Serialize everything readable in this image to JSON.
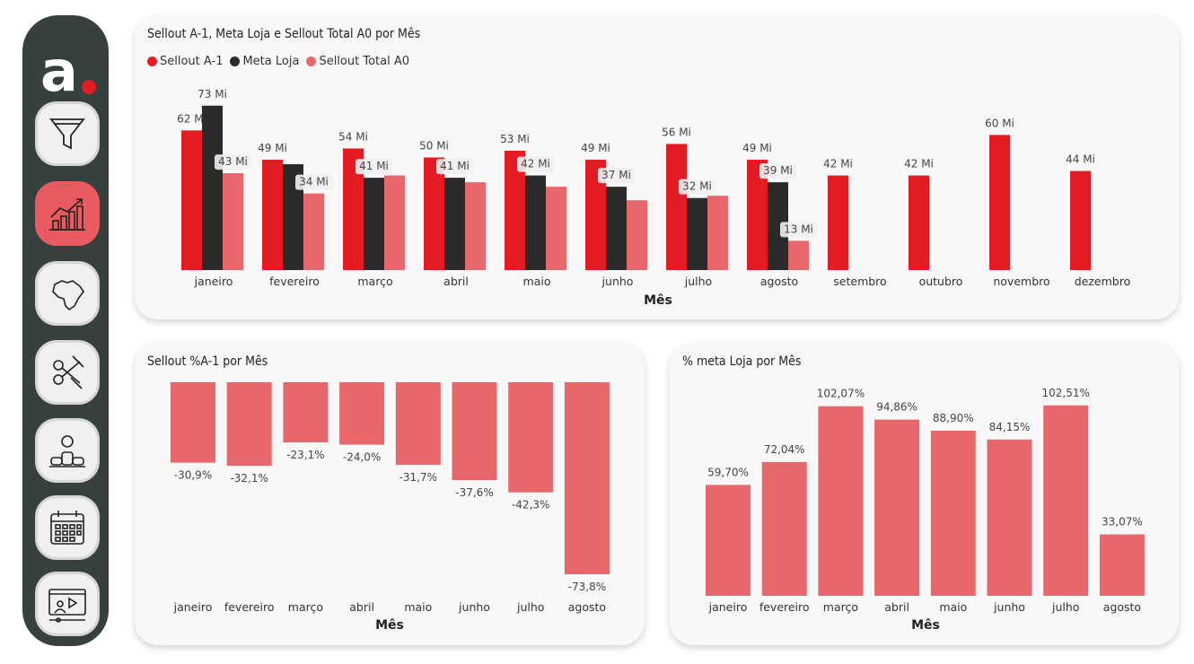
{
  "brand": {
    "logo_letter": "a",
    "dot_color": "#e31c23"
  },
  "sidebar": {
    "items": [
      {
        "name": "filter",
        "icon": "funnel-icon",
        "active": false
      },
      {
        "name": "sales-chart",
        "icon": "growth-chart-icon",
        "active": true
      },
      {
        "name": "brazil-map",
        "icon": "brazil-map-icon",
        "active": false
      },
      {
        "name": "tools",
        "icon": "scissors-tools-icon",
        "active": false
      },
      {
        "name": "ranking",
        "icon": "podium-icon",
        "active": false
      },
      {
        "name": "calendar",
        "icon": "calendar-icon",
        "active": false
      },
      {
        "name": "presentation",
        "icon": "video-presentation-icon",
        "active": false
      }
    ]
  },
  "colors": {
    "sellout_a1": "#e31c23",
    "meta_loja": "#2b2b2b",
    "sellout_a0": "#e8676a",
    "bar_light": "#e8676a"
  },
  "chart_data": [
    {
      "type": "bar",
      "title": "Sellout A-1, Meta Loja e Sellout Total A0 por Mês",
      "xlabel": "Mês",
      "legend_position": "top-left",
      "categories": [
        "janeiro",
        "fevereiro",
        "março",
        "abril",
        "maio",
        "junho",
        "julho",
        "agosto",
        "setembro",
        "outubro",
        "novembro",
        "dezembro"
      ],
      "series": [
        {
          "name": "Sellout A-1",
          "values": [
            62,
            49,
            54,
            50,
            53,
            49,
            56,
            49,
            42,
            42,
            60,
            44
          ],
          "labels": [
            "62 Mi",
            "49 Mi",
            "54 Mi",
            "50 Mi",
            "53 Mi",
            "49 Mi",
            "56 Mi",
            "49 Mi",
            "42 Mi",
            "42 Mi",
            "60 Mi",
            "44 Mi"
          ]
        },
        {
          "name": "Meta Loja",
          "values": [
            73,
            47,
            41,
            41,
            42,
            37,
            32,
            39,
            null,
            null,
            null,
            null
          ],
          "labels": [
            "73 Mi",
            "",
            "41 Mi",
            "41 Mi",
            "42 Mi",
            "37 Mi",
            "32 Mi",
            "39 Mi",
            "",
            "",
            "",
            ""
          ]
        },
        {
          "name": "Sellout Total A0",
          "values": [
            43,
            34,
            42,
            39,
            37,
            31,
            33,
            13,
            null,
            null,
            null,
            null
          ],
          "labels": [
            "43 Mi",
            "34 Mi",
            "",
            "",
            "",
            "",
            "",
            "13 Mi",
            "",
            "",
            "",
            ""
          ]
        }
      ]
    },
    {
      "type": "bar",
      "title": "Sellout %A-1 por Mês",
      "xlabel": "Mês",
      "categories": [
        "janeiro",
        "fevereiro",
        "março",
        "abril",
        "maio",
        "junho",
        "julho",
        "agosto"
      ],
      "values": [
        -30.9,
        -32.1,
        -23.1,
        -24.0,
        -31.7,
        -37.6,
        -42.3,
        -73.8
      ],
      "labels": [
        "-30,9%",
        "-32,1%",
        "-23,1%",
        "-24,0%",
        "-31,7%",
        "-37,6%",
        "-42,3%",
        "-73,8%"
      ]
    },
    {
      "type": "bar",
      "title": "% meta Loja por Mês",
      "xlabel": "Mês",
      "categories": [
        "janeiro",
        "fevereiro",
        "março",
        "abril",
        "maio",
        "junho",
        "julho",
        "agosto"
      ],
      "values": [
        59.7,
        72.04,
        102.07,
        94.86,
        88.9,
        84.15,
        102.51,
        33.07
      ],
      "labels": [
        "59,70%",
        "72,04%",
        "102,07%",
        "94,86%",
        "88,90%",
        "84,15%",
        "102,51%",
        "33,07%"
      ]
    }
  ]
}
